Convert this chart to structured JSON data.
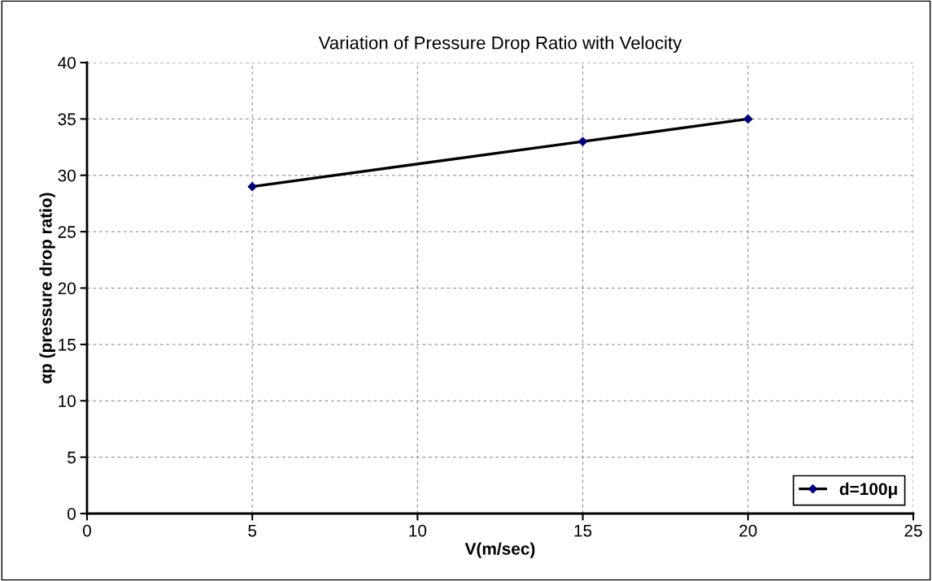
{
  "chart_data": {
    "type": "line",
    "title": "Variation of Pressure Drop Ratio with Velocity",
    "xlabel": "V(m/sec)",
    "ylabel": "αp (pressure drop ratio)",
    "x": [
      5,
      15,
      20
    ],
    "series": [
      {
        "name": "d=100μ",
        "color": "#000000",
        "values": [
          29,
          33,
          35
        ]
      }
    ],
    "xlim": [
      0,
      25
    ],
    "xticks": [
      0,
      5,
      10,
      15,
      20,
      25
    ],
    "ylim": [
      0,
      40
    ],
    "yticks": [
      0,
      5,
      10,
      15,
      20,
      25,
      30,
      35,
      40
    ],
    "grid": true,
    "legend": "bottom right",
    "marker": "diamond",
    "line_style": "solid"
  }
}
